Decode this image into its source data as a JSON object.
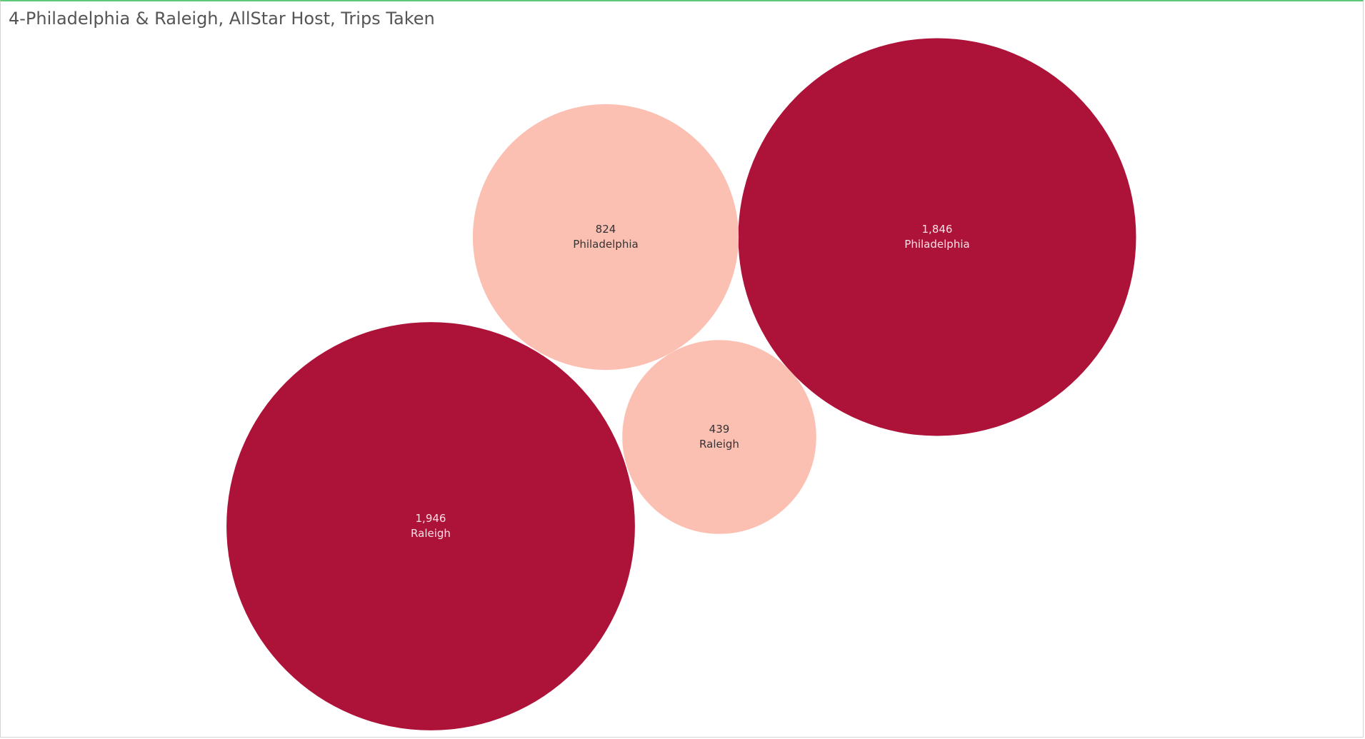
{
  "title": "4-Philadelphia & Raleigh, AllStar Host, Trips Taken",
  "colors": {
    "dark": "#ad1238",
    "light": "#fcc0b3",
    "label_on_dark": "#fbe0e6",
    "label_on_light": "#333333",
    "title": "#555555"
  },
  "chart_data": {
    "type": "bubble",
    "title": "4-Philadelphia & Raleigh, AllStar Host, Trips Taken",
    "series": [
      {
        "shade": "dark",
        "points": [
          {
            "city": "Philadelphia",
            "value": 1846,
            "value_label": "1,846"
          },
          {
            "city": "Raleigh",
            "value": 1946,
            "value_label": "1,946"
          }
        ]
      },
      {
        "shade": "light",
        "points": [
          {
            "city": "Philadelphia",
            "value": 824,
            "value_label": "824"
          },
          {
            "city": "Raleigh",
            "value": 439,
            "value_label": "439"
          }
        ]
      }
    ]
  }
}
